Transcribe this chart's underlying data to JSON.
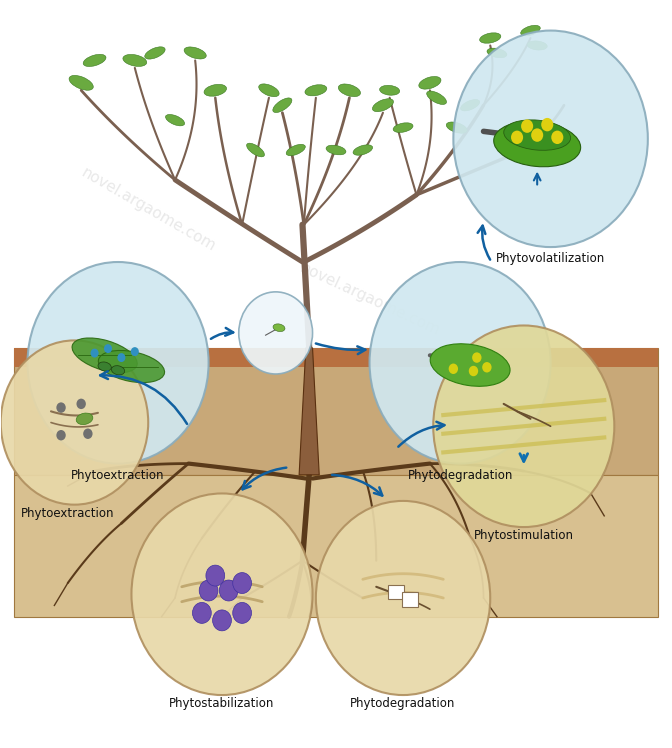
{
  "fig_width": 6.72,
  "fig_height": 7.48,
  "dpi": 100,
  "bg_color": "#FFFFFF",
  "trunk_color": "#8B5E3C",
  "branch_color": "#7A6050",
  "leaf_color": "#6AAA40",
  "leaf_edge_color": "#3A7A20",
  "root_color": "#5A3A1A",
  "soil_upper_color": "#C8A878",
  "soil_lower_color": "#D8C090",
  "soil_stripe_color": "#B87040",
  "circ_above_fill": "#D0E8F0",
  "circ_above_edge": "#8AACBC",
  "circ_small_fill": "#E8F4F8",
  "circ_below_fill": "#E8D8A8",
  "circ_below_edge": "#B09060",
  "arrow_color": "#1060A0",
  "arrow_up_color": "#1070B0",
  "label_color": "#111111",
  "watermark": "novel.argaome.com",
  "labels": {
    "phytoextraction_above": [
      0.175,
      0.435,
      "Phytoextraction"
    ],
    "phytodegradation_above": [
      0.685,
      0.435,
      "Phytodegradation"
    ],
    "phytovolatilization": [
      0.825,
      0.895,
      "Phytovolatilization"
    ],
    "phytoextraction_below": [
      0.1,
      0.335,
      "Phytoextraction"
    ],
    "phytostimulation": [
      0.78,
      0.325,
      "Phytostimulation"
    ],
    "phytostabilization": [
      0.32,
      0.075,
      "Phytostabilization"
    ],
    "phytodegradation_below": [
      0.6,
      0.075,
      "Phytodegradation"
    ]
  }
}
